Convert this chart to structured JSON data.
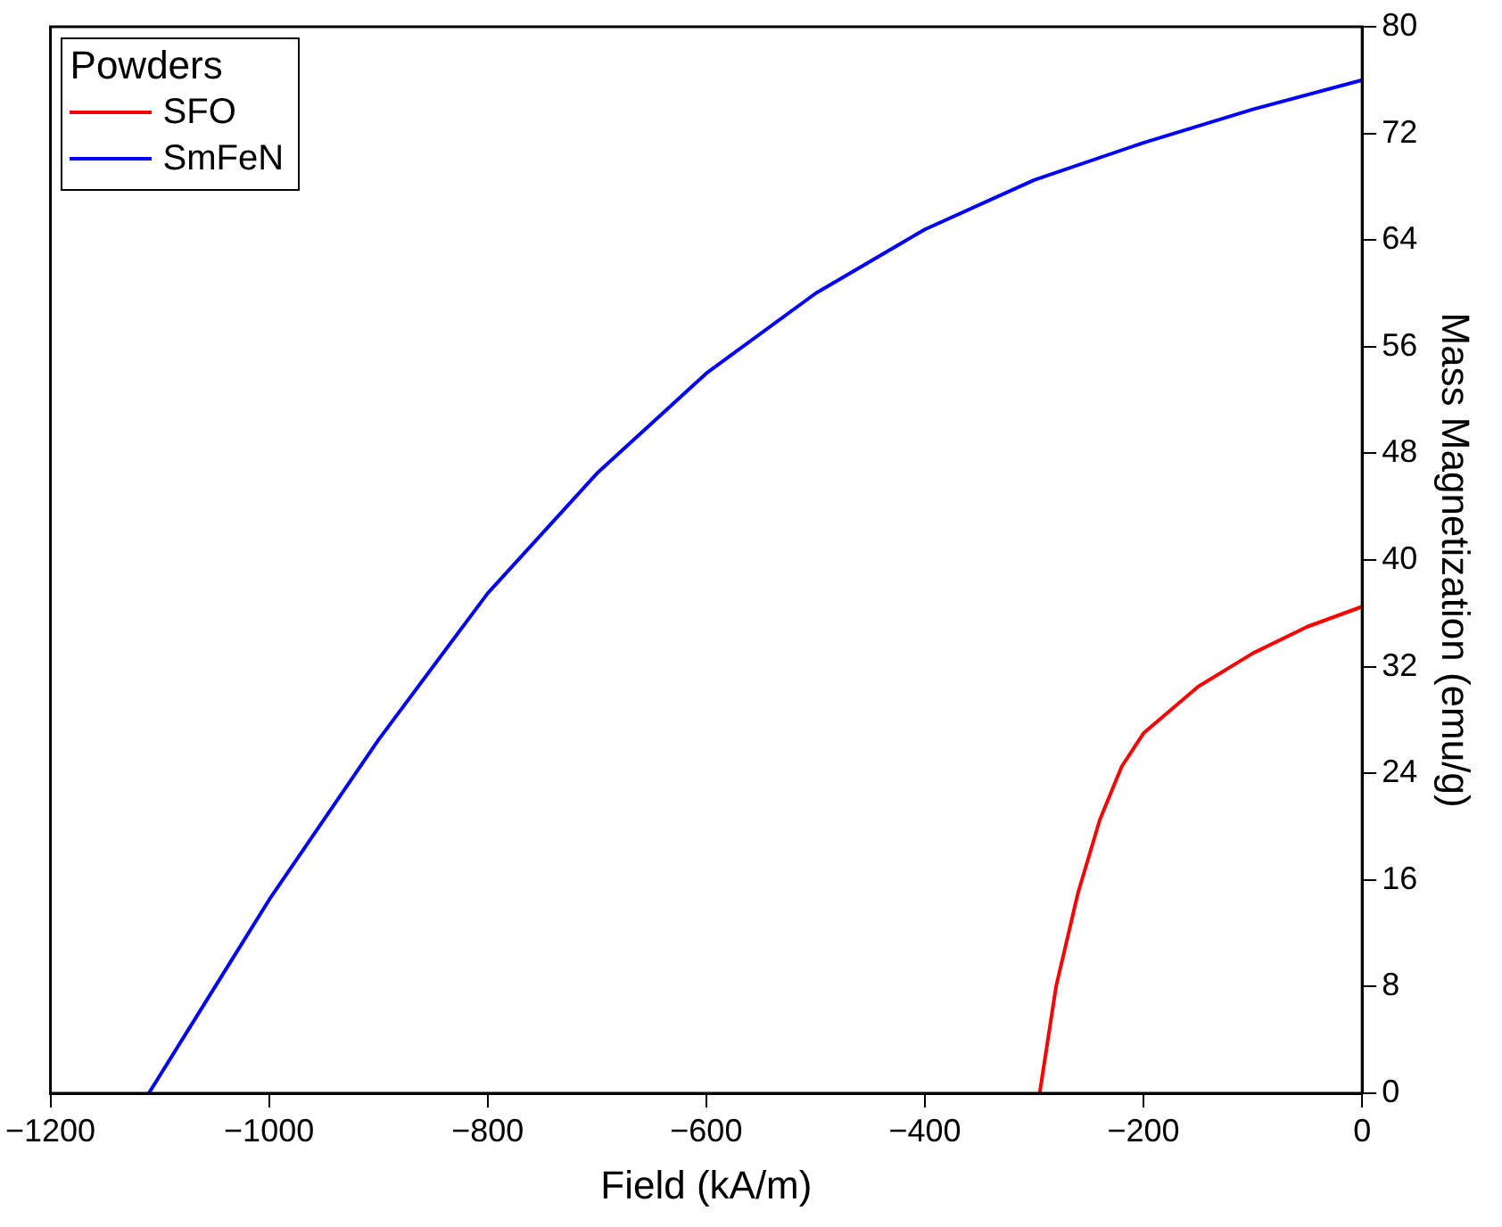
{
  "chart_data": {
    "type": "line",
    "xlabel": "Field (kA/m)",
    "ylabel": "Mass Magnetization (emu/g)",
    "legend_title": "Powders",
    "xlim": [
      -1200,
      0
    ],
    "xticks": [
      -1200,
      -1000,
      -800,
      -600,
      -400,
      -200,
      0
    ],
    "ylim": [
      0,
      80
    ],
    "yticks": [
      0,
      8,
      16,
      24,
      32,
      40,
      48,
      56,
      64,
      72,
      80
    ],
    "grid": false,
    "legend": "top left",
    "marker": "none",
    "line_style": "solid",
    "series": [
      {
        "name": "SFO",
        "color": "#ff0000",
        "x": [
          -295,
          -280,
          -260,
          -240,
          -220,
          -200,
          -150,
          -100,
          -50,
          0
        ],
        "values": [
          0,
          8,
          15,
          20.5,
          24.5,
          27,
          30.5,
          33,
          35,
          36.5
        ]
      },
      {
        "name": "SmFeN",
        "color": "#0000ff",
        "x": [
          -1110,
          -1000,
          -900,
          -800,
          -700,
          -600,
          -500,
          -400,
          -300,
          -200,
          -100,
          0
        ],
        "values": [
          0,
          14.5,
          26.5,
          37.5,
          46.5,
          54,
          60,
          64.8,
          68.5,
          71.3,
          73.8,
          76
        ]
      }
    ]
  }
}
